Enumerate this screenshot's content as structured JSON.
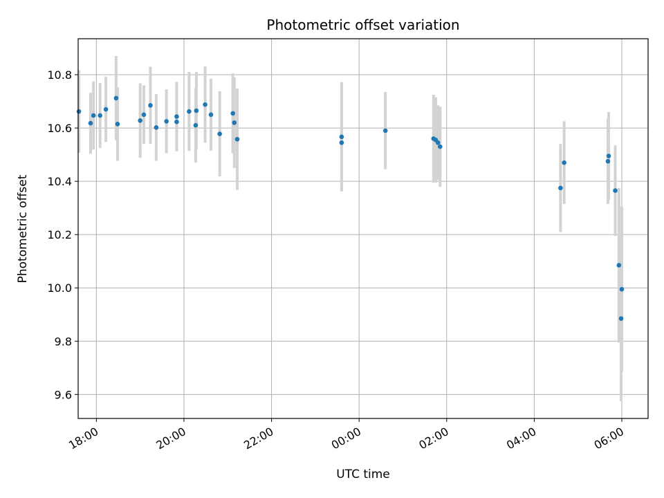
{
  "chart_data": {
    "type": "scatter",
    "title": "Photometric offset variation",
    "xlabel": "UTC time",
    "ylabel": "Photometric offset",
    "x_axis": "time",
    "x_ticks": [
      "18:00",
      "20:00",
      "22:00",
      "00:00",
      "02:00",
      "04:00",
      "06:00"
    ],
    "x_tick_rotation": -30,
    "xlim": [
      "17:35",
      "06:36"
    ],
    "ylim": [
      9.51,
      10.935
    ],
    "y_ticks": [
      9.6,
      9.8,
      10.0,
      10.2,
      10.4,
      10.6,
      10.8
    ],
    "y_tick_labels": [
      "9.6",
      "9.8",
      "10.0",
      "10.2",
      "10.4",
      "10.6",
      "10.8"
    ],
    "grid": true,
    "marker_color": "#1f77b4",
    "errorbar_color": "#d3d3d3",
    "series": [
      {
        "points": [
          {
            "t": "17:36",
            "y": 10.662,
            "err": 0.155
          },
          {
            "t": "17:52",
            "y": 10.618,
            "err": 0.115
          },
          {
            "t": "17:56",
            "y": 10.647,
            "err": 0.128
          },
          {
            "t": "18:05",
            "y": 10.647,
            "err": 0.122
          },
          {
            "t": "18:13",
            "y": 10.67,
            "err": 0.122
          },
          {
            "t": "18:27",
            "y": 10.712,
            "err": 0.158
          },
          {
            "t": "18:29",
            "y": 10.615,
            "err": 0.138
          },
          {
            "t": "19:00",
            "y": 10.628,
            "err": 0.14
          },
          {
            "t": "19:05",
            "y": 10.65,
            "err": 0.11
          },
          {
            "t": "19:14",
            "y": 10.685,
            "err": 0.145
          },
          {
            "t": "19:22",
            "y": 10.602,
            "err": 0.125
          },
          {
            "t": "19:36",
            "y": 10.625,
            "err": 0.12
          },
          {
            "t": "19:50",
            "y": 10.623,
            "err": 0.11
          },
          {
            "t": "19:50",
            "y": 10.643,
            "err": 0.13
          },
          {
            "t": "20:07",
            "y": 10.662,
            "err": 0.148
          },
          {
            "t": "20:16",
            "y": 10.61,
            "err": 0.14
          },
          {
            "t": "20:17",
            "y": 10.665,
            "err": 0.145
          },
          {
            "t": "20:29",
            "y": 10.688,
            "err": 0.143
          },
          {
            "t": "20:37",
            "y": 10.65,
            "err": 0.135
          },
          {
            "t": "20:49",
            "y": 10.578,
            "err": 0.16
          },
          {
            "t": "21:07",
            "y": 10.655,
            "err": 0.15
          },
          {
            "t": "21:09",
            "y": 10.62,
            "err": 0.17
          },
          {
            "t": "21:13",
            "y": 10.558,
            "err": 0.19
          },
          {
            "t": "23:36",
            "y": 10.545,
            "err": 0.18
          },
          {
            "t": "23:36",
            "y": 10.567,
            "err": 0.205
          },
          {
            "t": "00:36",
            "y": 10.59,
            "err": 0.145
          },
          {
            "t": "01:42",
            "y": 10.56,
            "err": 0.165
          },
          {
            "t": "01:45",
            "y": 10.555,
            "err": 0.16
          },
          {
            "t": "01:48",
            "y": 10.545,
            "err": 0.14
          },
          {
            "t": "01:51",
            "y": 10.53,
            "err": 0.15
          },
          {
            "t": "04:36",
            "y": 10.375,
            "err": 0.165
          },
          {
            "t": "04:41",
            "y": 10.47,
            "err": 0.155
          },
          {
            "t": "05:41",
            "y": 10.475,
            "err": 0.16
          },
          {
            "t": "05:42",
            "y": 10.495,
            "err": 0.165
          },
          {
            "t": "05:51",
            "y": 10.365,
            "err": 0.17
          },
          {
            "t": "05:56",
            "y": 10.085,
            "err": 0.29
          },
          {
            "t": "05:59",
            "y": 9.885,
            "err": 0.31
          },
          {
            "t": "06:00",
            "y": 9.995,
            "err": 0.31
          }
        ]
      }
    ]
  }
}
